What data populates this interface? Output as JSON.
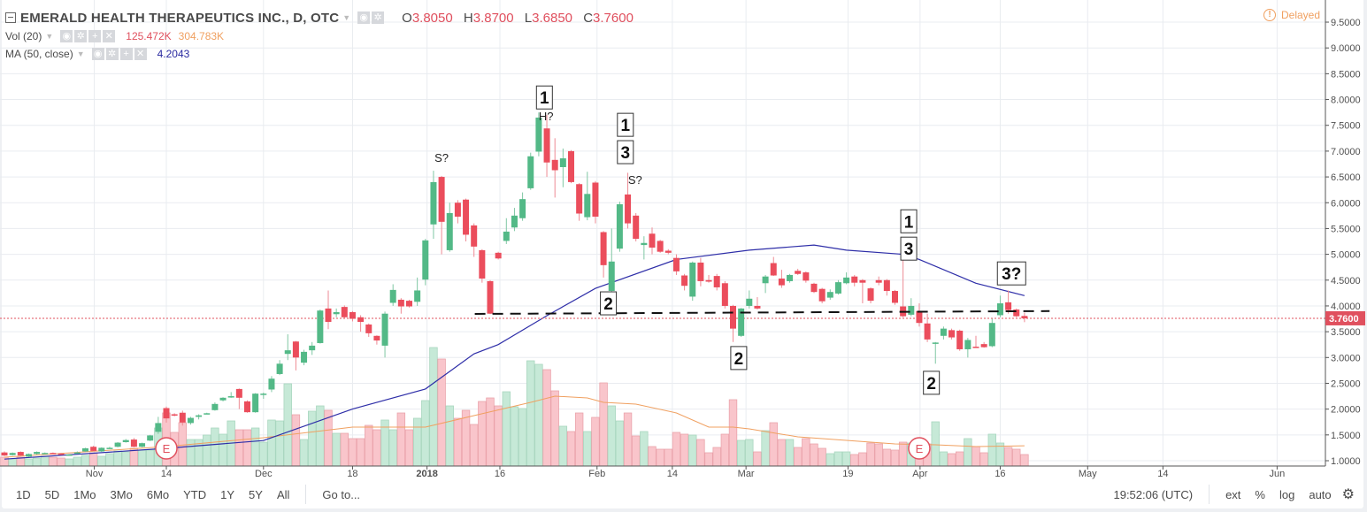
{
  "header": {
    "title": "EMERALD HEALTH THERAPEUTICS INC., D, OTC",
    "ohlc": {
      "o_label": "O",
      "o": "3.8050",
      "h_label": "H",
      "h": "3.8700",
      "l_label": "L",
      "l": "3.6850",
      "c_label": "C",
      "c": "3.7600"
    },
    "volume": {
      "label": "Vol (20)",
      "value": "125.472K",
      "ma_value": "304.783K"
    },
    "ma": {
      "label": "MA (50, close)",
      "value": "4.2043"
    },
    "delayed": "Delayed"
  },
  "toolbar": {
    "ranges": [
      "1D",
      "5D",
      "1Mo",
      "3Mo",
      "6Mo",
      "YTD",
      "1Y",
      "5Y",
      "All"
    ],
    "goto": "Go to...",
    "clock": "19:52:06 (UTC)",
    "options": [
      "ext",
      "%",
      "log",
      "auto"
    ]
  },
  "colors": {
    "up": "#53b987",
    "down": "#eb4d5c",
    "up_vol": "#c6e9d7",
    "down_vol": "#f9c5cb",
    "ma": "#2e2ea8",
    "vol_ma": "#f0a060",
    "last": "#e0505e"
  },
  "chart_data": {
    "type": "candlestick",
    "y_ticks": [
      "9.5000",
      "9.0000",
      "8.5000",
      "8.0000",
      "7.5000",
      "7.0000",
      "6.5000",
      "6.0000",
      "5.5000",
      "5.0000",
      "4.5000",
      "4.0000",
      "3.5000",
      "3.0000",
      "2.5000",
      "2.0000",
      "1.5000",
      "1.0000"
    ],
    "ylim": [
      1.0,
      9.5
    ],
    "last_price": "3.7600",
    "x_ticks": [
      {
        "label": "Nov",
        "bar": 12.1
      },
      {
        "label": "14",
        "bar": 21
      },
      {
        "label": "Dec",
        "bar": 33
      },
      {
        "label": "18",
        "bar": 44
      },
      {
        "label": "2018",
        "bar": 53.2,
        "bold": true
      },
      {
        "label": "16",
        "bar": 62.2
      },
      {
        "label": "Feb",
        "bar": 74.2
      },
      {
        "label": "14",
        "bar": 83.5
      },
      {
        "label": "Mar",
        "bar": 92.6
      },
      {
        "label": "19",
        "bar": 105.2
      },
      {
        "label": "Apr",
        "bar": 114.1
      },
      {
        "label": "16",
        "bar": 124
      },
      {
        "label": "May",
        "bar": 134.8
      },
      {
        "label": "14",
        "bar": 144.1
      },
      {
        "label": "Jun",
        "bar": 158.2
      }
    ],
    "ohlc": [
      [
        1.16,
        1.18,
        1.09,
        1.1
      ],
      [
        1.11,
        1.16,
        1.1,
        1.15
      ],
      [
        1.17,
        1.18,
        1.09,
        1.1
      ],
      [
        1.08,
        1.14,
        1.07,
        1.13
      ],
      [
        1.13,
        1.18,
        1.12,
        1.17
      ],
      [
        1.15,
        1.16,
        1.14,
        1.15
      ],
      [
        1.15,
        1.16,
        1.13,
        1.14
      ],
      [
        1.14,
        1.15,
        1.11,
        1.12
      ],
      [
        1.12,
        1.13,
        1.11,
        1.12
      ],
      [
        1.16,
        1.18,
        1.15,
        1.16
      ],
      [
        1.18,
        1.25,
        1.17,
        1.24
      ],
      [
        1.27,
        1.29,
        1.18,
        1.19
      ],
      [
        1.18,
        1.26,
        1.17,
        1.25
      ],
      [
        1.25,
        1.27,
        1.24,
        1.25
      ],
      [
        1.27,
        1.36,
        1.26,
        1.35
      ],
      [
        1.36,
        1.42,
        1.35,
        1.4
      ],
      [
        1.41,
        1.44,
        1.26,
        1.27
      ],
      [
        1.27,
        1.35,
        1.26,
        1.34
      ],
      [
        1.39,
        1.5,
        1.38,
        1.49
      ],
      [
        1.56,
        1.85,
        1.52,
        1.73
      ],
      [
        2.02,
        2.05,
        1.74,
        1.82
      ],
      [
        1.9,
        1.92,
        1.86,
        1.89
      ],
      [
        1.93,
        1.97,
        1.68,
        1.74
      ],
      [
        1.73,
        1.85,
        1.7,
        1.83
      ],
      [
        1.85,
        1.9,
        1.8,
        1.88
      ],
      [
        1.91,
        1.93,
        1.9,
        1.92
      ],
      [
        1.98,
        2.13,
        1.97,
        2.1
      ],
      [
        2.17,
        2.23,
        2.15,
        2.22
      ],
      [
        2.24,
        2.33,
        2.22,
        2.25
      ],
      [
        2.39,
        2.4,
        2.0,
        2.22
      ],
      [
        2.15,
        2.17,
        1.93,
        1.94
      ],
      [
        1.94,
        2.31,
        1.93,
        2.3
      ],
      [
        2.3,
        2.32,
        2.2,
        2.3
      ],
      [
        2.38,
        2.64,
        2.33,
        2.59
      ],
      [
        2.68,
        2.95,
        2.66,
        2.88
      ],
      [
        3.07,
        3.45,
        2.95,
        3.14
      ],
      [
        3.31,
        3.32,
        2.75,
        3.0
      ],
      [
        2.9,
        3.15,
        2.85,
        3.11
      ],
      [
        3.14,
        3.3,
        3.05,
        3.23
      ],
      [
        3.28,
        3.93,
        3.27,
        3.91
      ],
      [
        3.95,
        4.3,
        3.55,
        3.69
      ],
      [
        3.84,
        3.95,
        3.78,
        3.88
      ],
      [
        3.98,
        4.01,
        3.77,
        3.78
      ],
      [
        3.88,
        3.9,
        3.7,
        3.75
      ],
      [
        3.78,
        3.82,
        3.5,
        3.69
      ],
      [
        3.64,
        3.66,
        3.4,
        3.47
      ],
      [
        3.42,
        3.43,
        3.25,
        3.33
      ],
      [
        3.23,
        3.89,
        3.0,
        3.85
      ],
      [
        4.06,
        4.42,
        4.0,
        4.31
      ],
      [
        4.12,
        4.15,
        3.85,
        3.99
      ],
      [
        4.1,
        4.12,
        3.97,
        3.99
      ],
      [
        4.08,
        4.55,
        4.0,
        4.3
      ],
      [
        4.51,
        5.3,
        4.4,
        5.27
      ],
      [
        5.58,
        6.62,
        5.3,
        6.4
      ],
      [
        6.5,
        6.52,
        5.0,
        5.63
      ],
      [
        5.08,
        6.0,
        5.05,
        5.8
      ],
      [
        6.0,
        6.05,
        5.6,
        5.73
      ],
      [
        6.06,
        6.08,
        5.25,
        5.38
      ],
      [
        5.56,
        5.6,
        4.95,
        5.15
      ],
      [
        5.08,
        5.1,
        4.45,
        4.53
      ],
      [
        4.48,
        4.5,
        3.84,
        3.85
      ],
      [
        5.03,
        5.05,
        4.9,
        4.92
      ],
      [
        5.26,
        5.7,
        5.2,
        5.44
      ],
      [
        5.52,
        5.9,
        5.45,
        5.75
      ],
      [
        5.7,
        6.2,
        5.65,
        6.07
      ],
      [
        6.28,
        6.97,
        6.25,
        6.9
      ],
      [
        6.99,
        7.75,
        6.9,
        7.65
      ],
      [
        7.44,
        7.7,
        6.5,
        6.78
      ],
      [
        6.83,
        7.25,
        6.1,
        6.63
      ],
      [
        6.69,
        7.05,
        6.3,
        6.86
      ],
      [
        7.0,
        7.02,
        6.38,
        6.4
      ],
      [
        6.36,
        6.38,
        5.65,
        5.79
      ],
      [
        5.72,
        6.6,
        5.66,
        6.17
      ],
      [
        6.39,
        6.42,
        5.6,
        5.73
      ],
      [
        5.43,
        5.45,
        4.55,
        4.79
      ],
      [
        4.29,
        5.5,
        4.2,
        4.86
      ],
      [
        5.11,
        6.02,
        5.05,
        5.97
      ],
      [
        6.16,
        6.58,
        5.5,
        5.6
      ],
      [
        5.75,
        5.8,
        5.25,
        5.3
      ],
      [
        5.18,
        5.35,
        4.9,
        5.22
      ],
      [
        5.4,
        5.52,
        5.0,
        5.13
      ],
      [
        5.26,
        5.28,
        5.03,
        5.05
      ],
      [
        5.07,
        5.1,
        5.0,
        5.03
      ],
      [
        4.93,
        5.0,
        4.6,
        4.67
      ],
      [
        4.59,
        4.62,
        4.3,
        4.39
      ],
      [
        4.18,
        4.86,
        4.1,
        4.84
      ],
      [
        4.84,
        4.93,
        4.38,
        4.48
      ],
      [
        4.5,
        4.6,
        4.45,
        4.47
      ],
      [
        4.58,
        4.62,
        4.3,
        4.36
      ],
      [
        4.44,
        4.48,
        3.95,
        4.0
      ],
      [
        4.0,
        4.02,
        3.3,
        3.56
      ],
      [
        3.42,
        3.96,
        3.4,
        3.95
      ],
      [
        4.0,
        4.3,
        3.95,
        4.14
      ],
      [
        4.0,
        4.17,
        3.93,
        3.95
      ],
      [
        4.44,
        4.6,
        4.25,
        4.57
      ],
      [
        4.83,
        4.95,
        4.58,
        4.59
      ],
      [
        4.53,
        4.7,
        4.35,
        4.4
      ],
      [
        4.48,
        4.62,
        4.45,
        4.6
      ],
      [
        4.68,
        4.72,
        4.6,
        4.62
      ],
      [
        4.65,
        4.67,
        4.45,
        4.49
      ],
      [
        4.43,
        4.45,
        4.25,
        4.27
      ],
      [
        4.33,
        4.35,
        4.05,
        4.09
      ],
      [
        4.16,
        4.32,
        4.12,
        4.27
      ],
      [
        4.24,
        4.5,
        4.22,
        4.46
      ],
      [
        4.44,
        4.65,
        4.42,
        4.55
      ],
      [
        4.57,
        4.6,
        4.38,
        4.45
      ],
      [
        4.5,
        4.52,
        4.05,
        4.45
      ],
      [
        4.34,
        4.36,
        4.05,
        4.1
      ],
      [
        4.5,
        4.57,
        4.4,
        4.45
      ],
      [
        4.5,
        4.52,
        4.2,
        4.29
      ],
      [
        4.29,
        4.31,
        4.02,
        4.06
      ],
      [
        3.99,
        5.0,
        3.78,
        3.8
      ],
      [
        3.83,
        4.15,
        3.8,
        4.0
      ],
      [
        3.9,
        4.05,
        3.6,
        3.67
      ],
      [
        3.66,
        3.85,
        3.3,
        3.35
      ],
      [
        3.27,
        3.3,
        2.88,
        3.29
      ],
      [
        3.42,
        3.6,
        3.35,
        3.56
      ],
      [
        3.53,
        3.56,
        3.35,
        3.39
      ],
      [
        3.52,
        3.54,
        3.13,
        3.16
      ],
      [
        3.16,
        3.38,
        3.0,
        3.34
      ],
      [
        3.21,
        3.42,
        3.19,
        3.2
      ],
      [
        3.26,
        3.3,
        3.19,
        3.2
      ],
      [
        3.22,
        3.75,
        3.2,
        3.67
      ],
      [
        3.82,
        4.2,
        3.78,
        4.05
      ],
      [
        4.07,
        4.3,
        3.85,
        3.92
      ],
      [
        3.93,
        3.95,
        3.78,
        3.8
      ],
      [
        3.805,
        3.87,
        3.685,
        3.76
      ]
    ],
    "volume_k": [
      72,
      36,
      72,
      36,
      54,
      90,
      72,
      54,
      36,
      72,
      108,
      162,
      90,
      144,
      198,
      180,
      252,
      216,
      216,
      666,
      972,
      576,
      774,
      432,
      432,
      522,
      666,
      540,
      810,
      630,
      630,
      666,
      378,
      828,
      810,
      1566,
      936,
      432,
      1008,
      1116,
      1026,
      558,
      558,
      450,
      450,
      720,
      630,
      828,
      630,
      972,
      630,
      864,
      1224,
      2304,
      2070,
      1116,
      864,
      1026,
      738,
      1206,
      1278,
      1116,
      1404,
      1098,
      1062,
      2034,
      1962,
      1854,
      1422,
      702,
      594,
      972,
      594,
      882,
      1584,
      1116,
      810,
      972,
      504,
      594,
      288,
      234,
      234,
      576,
      540,
      522,
      432,
      162,
      270,
      540,
      1242,
      414,
      432,
      180,
      612,
      774,
      432,
      432,
      270,
      450,
      342,
      252,
      144,
      180,
      180,
      126,
      162,
      360,
      342,
      234,
      216,
      378,
      360,
      342,
      342,
      792,
      180,
      144,
      180,
      450,
      288,
      162,
      540,
      360,
      270,
      234,
      125.472
    ],
    "ma50": [
      [
        1,
        1.03
      ],
      [
        21,
        1.24
      ],
      [
        33,
        1.39
      ],
      [
        44,
        2.0
      ],
      [
        53,
        2.39
      ],
      [
        59,
        3.07
      ],
      [
        62,
        3.25
      ],
      [
        68,
        3.81
      ],
      [
        74,
        4.34
      ],
      [
        84,
        4.9
      ],
      [
        93,
        5.08
      ],
      [
        101,
        5.18
      ],
      [
        105,
        5.08
      ],
      [
        112,
        5.0
      ],
      [
        114,
        4.9
      ],
      [
        121,
        4.44
      ],
      [
        127,
        4.2
      ]
    ],
    "vol_ma20_k": [
      [
        1,
        72
      ],
      [
        21,
        288
      ],
      [
        33,
        468
      ],
      [
        44,
        684
      ],
      [
        53,
        684
      ],
      [
        59,
        918
      ],
      [
        66,
        1188
      ],
      [
        69,
        1314
      ],
      [
        73,
        1278
      ],
      [
        75,
        1188
      ],
      [
        79,
        1152
      ],
      [
        84,
        972
      ],
      [
        88,
        684
      ],
      [
        91,
        684
      ],
      [
        93,
        648
      ],
      [
        99,
        486
      ],
      [
        105,
        414
      ],
      [
        111,
        342
      ],
      [
        116,
        324
      ],
      [
        121,
        288
      ],
      [
        127,
        305
      ]
    ],
    "earnings_events": [
      {
        "label": "E",
        "bar": 21
      },
      {
        "label": "E",
        "bar": 114
      }
    ],
    "annotations": [
      {
        "text": "1",
        "boxed": true,
        "bar": 67.7,
        "price": 8.04
      },
      {
        "text": "H?",
        "boxed": false,
        "bar": 67.9,
        "price": 7.84
      },
      {
        "text": "S?",
        "boxed": false,
        "bar": 55,
        "price": 6.88
      },
      {
        "text": "1",
        "boxed": true,
        "bar": 77.7,
        "price": 7.51
      },
      {
        "text": "3",
        "boxed": true,
        "bar": 77.7,
        "price": 6.98
      },
      {
        "text": "S?",
        "boxed": false,
        "bar": 78.9,
        "price": 6.45
      },
      {
        "text": "2",
        "boxed": true,
        "bar": 75.6,
        "price": 4.05
      },
      {
        "text": "2",
        "boxed": true,
        "bar": 91.7,
        "price": 2.99
      },
      {
        "text": "1",
        "boxed": true,
        "bar": 112.7,
        "price": 5.64
      },
      {
        "text": "3",
        "boxed": true,
        "bar": 112.7,
        "price": 5.11
      },
      {
        "text": "2",
        "boxed": true,
        "bar": 115.5,
        "price": 2.51
      },
      {
        "text": "3?",
        "boxed": true,
        "bar": 125.4,
        "price": 4.63
      }
    ],
    "neckline": {
      "from": {
        "bar": 59.1,
        "price": 3.845
      },
      "to": {
        "bar": 130.1,
        "price": 3.9
      }
    }
  }
}
